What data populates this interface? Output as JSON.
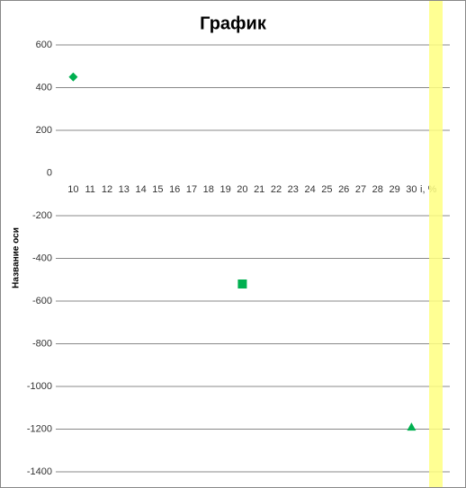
{
  "chart_data": {
    "type": "scatter-category",
    "title": "График",
    "y_label": "Название оси",
    "categories": [
      "10",
      "11",
      "12",
      "13",
      "14",
      "15",
      "16",
      "17",
      "18",
      "19",
      "20",
      "21",
      "22",
      "23",
      "24",
      "25",
      "26",
      "27",
      "28",
      "29",
      "30",
      "i, %"
    ],
    "series": [
      {
        "color": "#00b050",
        "values": [
          450,
          null,
          null,
          null,
          null,
          null,
          null,
          null,
          null,
          null,
          -520,
          null,
          null,
          null,
          null,
          null,
          null,
          null,
          null,
          null,
          -1190,
          null
        ],
        "markers": [
          "diamond",
          null,
          null,
          null,
          null,
          null,
          null,
          null,
          null,
          null,
          "square",
          null,
          null,
          null,
          null,
          null,
          null,
          null,
          null,
          null,
          "triangle",
          null
        ]
      }
    ],
    "ylim": [
      -1400,
      600
    ],
    "yticks": [
      600,
      400,
      200,
      0,
      -200,
      -400,
      -600,
      -800,
      -1000,
      -1200,
      -1400
    ],
    "grid": true
  }
}
